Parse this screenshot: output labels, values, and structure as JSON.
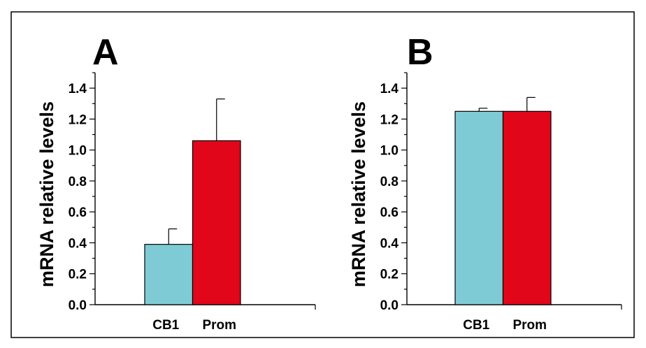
{
  "figure": {
    "frame_color": "#000000",
    "background": "#ffffff"
  },
  "chart_data": [
    {
      "type": "bar",
      "panel_label": "A",
      "title": "",
      "xlabel": "",
      "ylabel": "mRNA relative levels",
      "ylim": [
        0,
        1.5
      ],
      "yticks": [
        "0.0",
        "0.2",
        "0.4",
        "0.6",
        "0.8",
        "1.0",
        "1.2",
        "1.4"
      ],
      "grid": false,
      "categories": [
        "CB1",
        "Prom"
      ],
      "values": [
        0.39,
        1.06
      ],
      "errors": [
        0.1,
        0.27
      ],
      "colors": [
        "#7ecbd6",
        "#e2061a"
      ]
    },
    {
      "type": "bar",
      "panel_label": "B",
      "title": "",
      "xlabel": "",
      "ylabel": "mRNA relative levels",
      "ylim": [
        0,
        1.5
      ],
      "yticks": [
        "0.0",
        "0.2",
        "0.4",
        "0.6",
        "0.8",
        "1.0",
        "1.2",
        "1.4"
      ],
      "grid": false,
      "categories": [
        "CB1",
        "Prom"
      ],
      "values": [
        1.25,
        1.25
      ],
      "errors": [
        0.02,
        0.09
      ],
      "colors": [
        "#7ecbd6",
        "#e2061a"
      ]
    }
  ]
}
